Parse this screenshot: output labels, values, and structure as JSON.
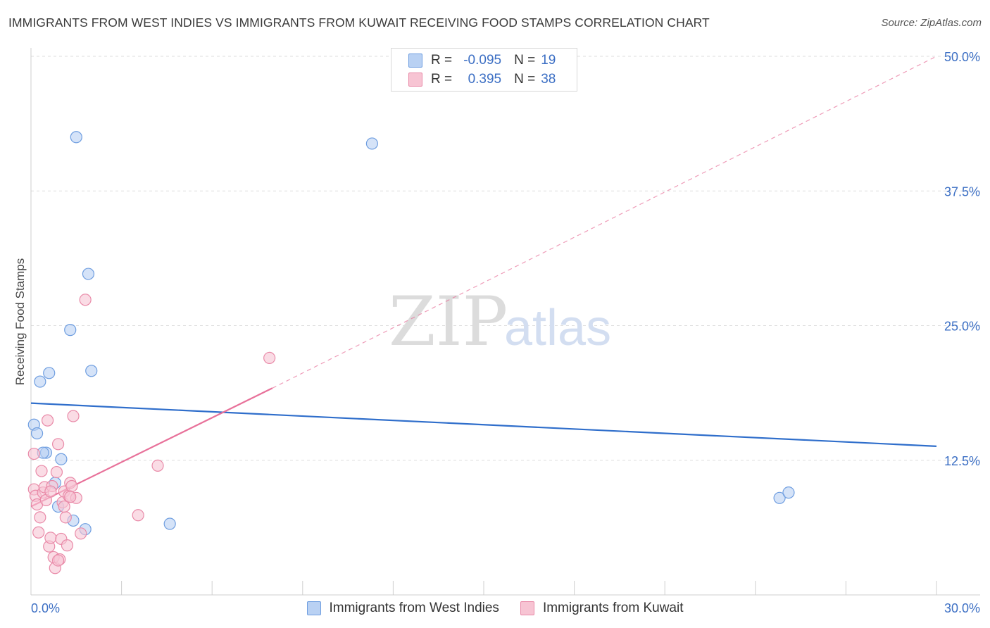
{
  "title": "IMMIGRANTS FROM WEST INDIES VS IMMIGRANTS FROM KUWAIT RECEIVING FOOD STAMPS CORRELATION CHART",
  "source": "Source: ZipAtlas.com",
  "watermark": {
    "zip": "ZIP",
    "atlas": "atlas"
  },
  "colors": {
    "blue_fill": "#b9d1f3",
    "blue_stroke": "#6f9ee0",
    "blue_line": "#2f6ecb",
    "pink_fill": "#f7c4d3",
    "pink_stroke": "#e98aa8",
    "pink_line": "#e8719a",
    "grid": "#dddddd",
    "axis_text": "#3c6fc4"
  },
  "legend": {
    "r_label": "R =",
    "n_label": "N =",
    "rows": [
      {
        "r": "-0.095",
        "n": "19"
      },
      {
        "r": "0.395",
        "n": "38"
      }
    ]
  },
  "chart_data": {
    "type": "scatter",
    "xlabel": "",
    "ylabel": "Receiving Food Stamps",
    "xlim": [
      0,
      30
    ],
    "ylim": [
      0,
      50
    ],
    "x_tick_labels": [
      "0.0%",
      "30.0%"
    ],
    "y_ticks": [
      12.5,
      25.0,
      37.5,
      50.0
    ],
    "y_tick_labels": [
      "12.5%",
      "25.0%",
      "37.5%",
      "50.0%"
    ],
    "grid": true,
    "series": [
      {
        "name": "Immigrants from West Indies",
        "color": "blue",
        "points": [
          [
            0.1,
            15.8
          ],
          [
            0.2,
            15.0
          ],
          [
            0.3,
            19.8
          ],
          [
            0.5,
            13.2
          ],
          [
            0.6,
            20.6
          ],
          [
            0.8,
            10.4
          ],
          [
            0.9,
            8.2
          ],
          [
            1.0,
            12.6
          ],
          [
            1.3,
            24.6
          ],
          [
            1.4,
            6.9
          ],
          [
            1.5,
            42.5
          ],
          [
            1.8,
            6.1
          ],
          [
            1.9,
            29.8
          ],
          [
            2.0,
            20.8
          ],
          [
            4.6,
            6.6
          ],
          [
            11.3,
            41.9
          ],
          [
            24.8,
            9.0
          ],
          [
            25.1,
            9.5
          ],
          [
            0.4,
            13.2
          ]
        ],
        "trend": {
          "x": [
            0,
            30
          ],
          "y": [
            17.8,
            13.8
          ],
          "style": "solid"
        }
      },
      {
        "name": "Immigrants from Kuwait",
        "color": "pink",
        "points": [
          [
            0.1,
            13.1
          ],
          [
            0.1,
            9.8
          ],
          [
            0.15,
            9.2
          ],
          [
            0.2,
            8.4
          ],
          [
            0.25,
            5.8
          ],
          [
            0.3,
            7.2
          ],
          [
            0.35,
            11.5
          ],
          [
            0.4,
            9.5
          ],
          [
            0.45,
            10.0
          ],
          [
            0.5,
            8.8
          ],
          [
            0.55,
            16.2
          ],
          [
            0.6,
            4.5
          ],
          [
            0.65,
            5.3
          ],
          [
            0.7,
            10.1
          ],
          [
            0.75,
            3.5
          ],
          [
            0.8,
            2.5
          ],
          [
            0.85,
            11.4
          ],
          [
            0.9,
            14.0
          ],
          [
            0.95,
            3.3
          ],
          [
            1.0,
            5.2
          ],
          [
            1.05,
            8.6
          ],
          [
            1.1,
            9.6
          ],
          [
            1.15,
            7.2
          ],
          [
            1.2,
            4.6
          ],
          [
            1.25,
            9.2
          ],
          [
            1.3,
            10.4
          ],
          [
            1.35,
            10.1
          ],
          [
            1.4,
            16.6
          ],
          [
            1.5,
            9.0
          ],
          [
            1.65,
            5.7
          ],
          [
            1.8,
            27.4
          ],
          [
            3.55,
            7.4
          ],
          [
            4.2,
            12.0
          ],
          [
            7.9,
            22.0
          ],
          [
            1.1,
            8.2
          ],
          [
            0.9,
            3.2
          ],
          [
            0.65,
            9.6
          ],
          [
            1.3,
            9.1
          ]
        ],
        "trend": {
          "x": [
            0,
            8.0
          ],
          "y": [
            8.2,
            19.2
          ],
          "style": "solid",
          "extension": {
            "x": [
              8.0,
              30
            ],
            "y": [
              19.2,
              50.0
            ],
            "style": "dashed"
          }
        }
      }
    ]
  }
}
